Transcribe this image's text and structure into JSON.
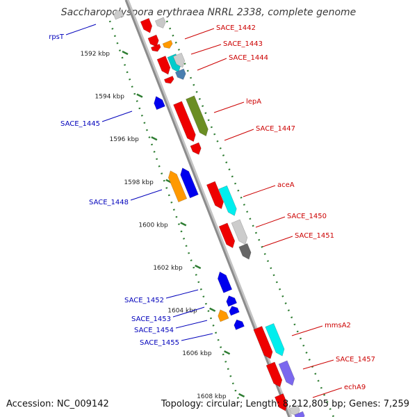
{
  "title": "Saccharopolyspora erythraea NRRL 2338, complete genome",
  "footer": {
    "accession": "Accession: NC_009142",
    "topology": "Topology: circular; Length: 8,212,805 bp; Genes: 7,259"
  },
  "colors": {
    "forward_label": "#cc0000",
    "reverse_label": "#0000bb",
    "backbone": "#8c8c8c",
    "tick": "#2e7d32",
    "tick_label": "#222222"
  },
  "ruler": {
    "ticks": [
      {
        "label": "1592 kbp",
        "kbp": 1592
      },
      {
        "label": "1594 kbp",
        "kbp": 1594
      },
      {
        "label": "1596 kbp",
        "kbp": 1596
      },
      {
        "label": "1598 kbp",
        "kbp": 1598
      },
      {
        "label": "1600 kbp",
        "kbp": 1600
      },
      {
        "label": "1602 kbp",
        "kbp": 1602
      },
      {
        "label": "1604 kbp",
        "kbp": 1604
      },
      {
        "label": "1606 kbp",
        "kbp": 1606
      },
      {
        "label": "1608 kbp",
        "kbp": 1608
      }
    ]
  },
  "genes_forward": [
    {
      "label": "SACE_1442"
    },
    {
      "label": "SACE_1443"
    },
    {
      "label": "SACE_1444"
    },
    {
      "label": "lepA"
    },
    {
      "label": "SACE_1447"
    },
    {
      "label": "aceA"
    },
    {
      "label": "SACE_1450"
    },
    {
      "label": "SACE_1451"
    },
    {
      "label": "mmsA2"
    },
    {
      "label": "SACE_1457"
    },
    {
      "label": "echA9"
    }
  ],
  "genes_reverse": [
    {
      "label": "rpsT"
    },
    {
      "label": "SACE_1445"
    },
    {
      "label": "SACE_1448"
    },
    {
      "label": "SACE_1452"
    },
    {
      "label": "SACE_1453"
    },
    {
      "label": "SACE_1454"
    },
    {
      "label": "SACE_1455"
    }
  ]
}
